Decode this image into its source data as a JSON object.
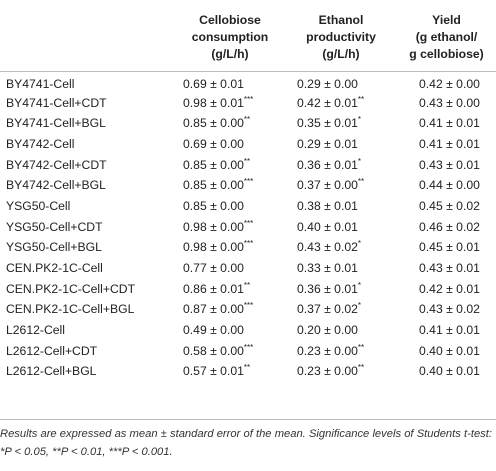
{
  "table": {
    "headers": [
      {
        "lines": [
          "",
          "",
          ""
        ]
      },
      {
        "lines": [
          "Cellobiose",
          "consumption",
          "(g/L/h)"
        ]
      },
      {
        "lines": [
          "Ethanol",
          "productivity",
          "(g/L/h)"
        ]
      },
      {
        "lines": [
          "Yield",
          "(g ethanol/",
          "g cellobiose)"
        ]
      }
    ],
    "rows": [
      {
        "strain": "BY4741-Cell",
        "c1": "0.69 ± 0.01",
        "c1s": "",
        "c2": "0.29 ± 0.00",
        "c2s": "",
        "c3": "0.42 ± 0.00",
        "c3s": ""
      },
      {
        "strain": "BY4741-Cell+CDT",
        "c1": "0.98 ± 0.01",
        "c1s": "***",
        "c2": "0.42 ± 0.01",
        "c2s": "**",
        "c3": "0.43 ± 0.00",
        "c3s": ""
      },
      {
        "strain": "BY4741-Cell+BGL",
        "c1": "0.85 ± 0.00",
        "c1s": "**",
        "c2": "0.35 ± 0.01",
        "c2s": "*",
        "c3": "0.41 ± 0.01",
        "c3s": ""
      },
      {
        "strain": "BY4742-Cell",
        "c1": "0.69 ± 0.00",
        "c1s": "",
        "c2": "0.29 ± 0.01",
        "c2s": "",
        "c3": "0.41 ± 0.01",
        "c3s": ""
      },
      {
        "strain": "BY4742-Cell+CDT",
        "c1": "0.85 ± 0.00",
        "c1s": "**",
        "c2": "0.36 ± 0.01",
        "c2s": "*",
        "c3": "0.43 ± 0.01",
        "c3s": ""
      },
      {
        "strain": "BY4742-Cell+BGL",
        "c1": "0.85 ± 0.00",
        "c1s": "***",
        "c2": "0.37 ± 0.00",
        "c2s": "**",
        "c3": "0.44 ± 0.00",
        "c3s": ""
      },
      {
        "strain": "YSG50-Cell",
        "c1": "0.85 ± 0.00",
        "c1s": "",
        "c2": "0.38 ± 0.01",
        "c2s": "",
        "c3": "0.45 ± 0.02",
        "c3s": ""
      },
      {
        "strain": "YSG50-Cell+CDT",
        "c1": "0.98 ± 0.00",
        "c1s": "***",
        "c2": "0.40 ± 0.01",
        "c2s": "",
        "c3": "0.46 ± 0.02",
        "c3s": ""
      },
      {
        "strain": "YSG50-Cell+BGL",
        "c1": "0.98 ± 0.00",
        "c1s": "***",
        "c2": "0.43 ± 0.02",
        "c2s": "*",
        "c3": "0.45 ± 0.01",
        "c3s": ""
      },
      {
        "strain": "CEN.PK2-1C-Cell",
        "c1": "0.77 ± 0.00",
        "c1s": "",
        "c2": "0.33 ± 0.01",
        "c2s": "",
        "c3": "0.43 ± 0.01",
        "c3s": ""
      },
      {
        "strain": "CEN.PK2-1C-Cell+CDT",
        "c1": "0.86 ± 0.01",
        "c1s": "**",
        "c2": "0.36 ± 0.01",
        "c2s": "*",
        "c3": "0.42 ± 0.01",
        "c3s": ""
      },
      {
        "strain": "CEN.PK2-1C-Cell+BGL",
        "c1": "0.87 ± 0.00",
        "c1s": "***",
        "c2": "0.37 ± 0.02",
        "c2s": "*",
        "c3": "0.43 ± 0.02",
        "c3s": ""
      },
      {
        "strain": "L2612-Cell",
        "c1": "0.49 ± 0.00",
        "c1s": "",
        "c2": "0.20 ± 0.00",
        "c2s": "",
        "c3": "0.41 ± 0.01",
        "c3s": ""
      },
      {
        "strain": "L2612-Cell+CDT",
        "c1": "0.58 ± 0.00",
        "c1s": "***",
        "c2": "0.23 ± 0.00",
        "c2s": "**",
        "c3": "0.40 ± 0.01",
        "c3s": ""
      },
      {
        "strain": "L2612-Cell+BGL",
        "c1": "0.57 ± 0.01",
        "c1s": "**",
        "c2": "0.23 ± 0.00",
        "c2s": "**",
        "c3": "0.40 ± 0.01",
        "c3s": ""
      }
    ]
  },
  "footnote": {
    "text": "Results are expressed as mean ± standard error of the mean. Significance levels of Students t-test: *P < 0.05, **P < 0.01, ***P < 0.001."
  }
}
